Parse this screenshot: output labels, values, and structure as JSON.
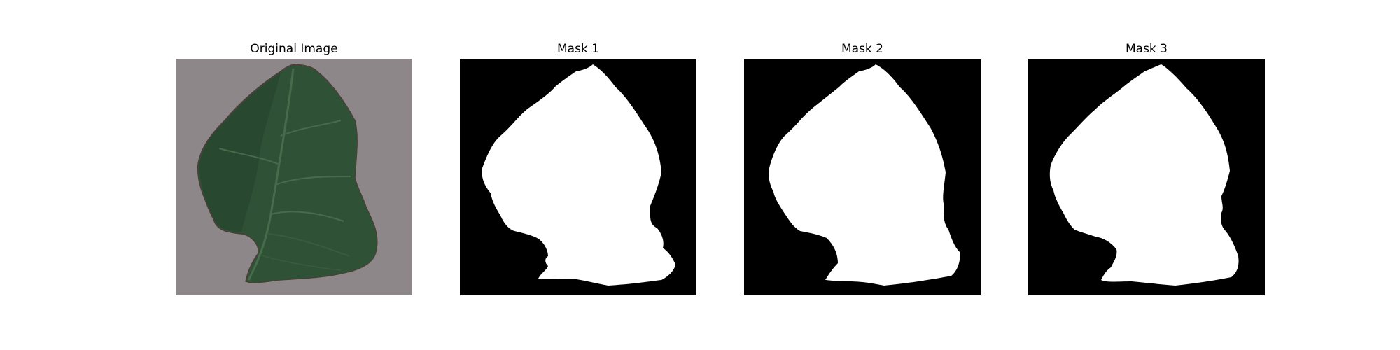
{
  "figure": {
    "panels": [
      {
        "title": "Original Image",
        "kind": "photo"
      },
      {
        "title": "Mask 1",
        "kind": "mask"
      },
      {
        "title": "Mask 2",
        "kind": "mask"
      },
      {
        "title": "Mask 3",
        "kind": "mask"
      }
    ]
  },
  "colors": {
    "background": "#ffffff",
    "mask_background": "#000000",
    "mask_foreground": "#ffffff",
    "photo_background": "#8e8789",
    "leaf": "#2f5236",
    "leaf_shade": "#223f2a",
    "leaf_vein": "#476c4c",
    "leaf_edge": "#4a3f37"
  }
}
